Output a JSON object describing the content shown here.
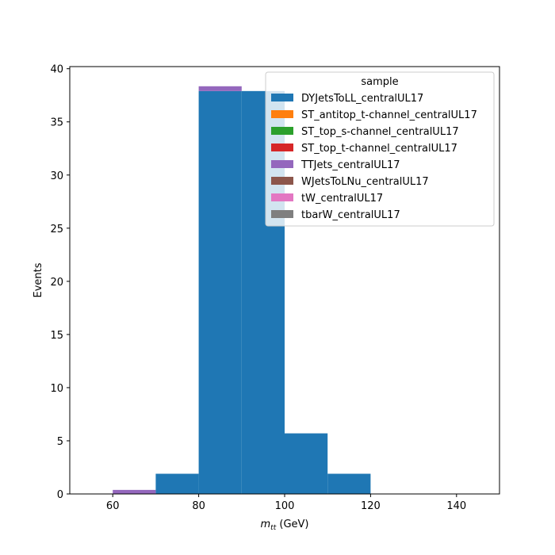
{
  "chart_data": {
    "type": "bar",
    "stacked": true,
    "histogram": true,
    "bin_edges": [
      60,
      70,
      80,
      90,
      100,
      110,
      120
    ],
    "xlim": [
      50,
      150
    ],
    "ylim": [
      0,
      40.2
    ],
    "xticks": [
      60,
      80,
      100,
      120,
      140
    ],
    "yticks": [
      0,
      5,
      10,
      15,
      20,
      25,
      30,
      35,
      40
    ],
    "xlabel_main": "m",
    "xlabel_sub": "tt",
    "xlabel_unit": " (GeV)",
    "ylabel": "Events",
    "legend": {
      "title": "sample",
      "placement": "top-right"
    },
    "series": [
      {
        "name": "DYJetsToLL_centralUL17",
        "color": "#1f77b4",
        "values": [
          0,
          1.9,
          37.9,
          37.9,
          5.7,
          1.9
        ]
      },
      {
        "name": "ST_antitop_t-channel_centralUL17",
        "color": "#ff7f0e",
        "values": [
          0,
          0,
          0,
          0,
          0,
          0
        ]
      },
      {
        "name": "ST_top_s-channel_centralUL17",
        "color": "#2ca02c",
        "values": [
          0,
          0,
          0,
          0,
          0,
          0
        ]
      },
      {
        "name": "ST_top_t-channel_centralUL17",
        "color": "#d62728",
        "values": [
          0,
          0,
          0,
          0,
          0,
          0
        ]
      },
      {
        "name": "TTJets_centralUL17",
        "color": "#9467bd",
        "values": [
          0.38,
          0,
          0.45,
          0,
          0,
          0
        ]
      },
      {
        "name": "WJetsToLNu_centralUL17",
        "color": "#8c564b",
        "values": [
          0,
          0,
          0,
          0,
          0,
          0
        ]
      },
      {
        "name": "tW_centralUL17",
        "color": "#e377c2",
        "values": [
          0,
          0,
          0,
          0,
          0,
          0
        ]
      },
      {
        "name": "tbarW_centralUL17",
        "color": "#7f7f7f",
        "values": [
          0,
          0,
          0,
          0,
          0,
          0
        ]
      }
    ]
  }
}
